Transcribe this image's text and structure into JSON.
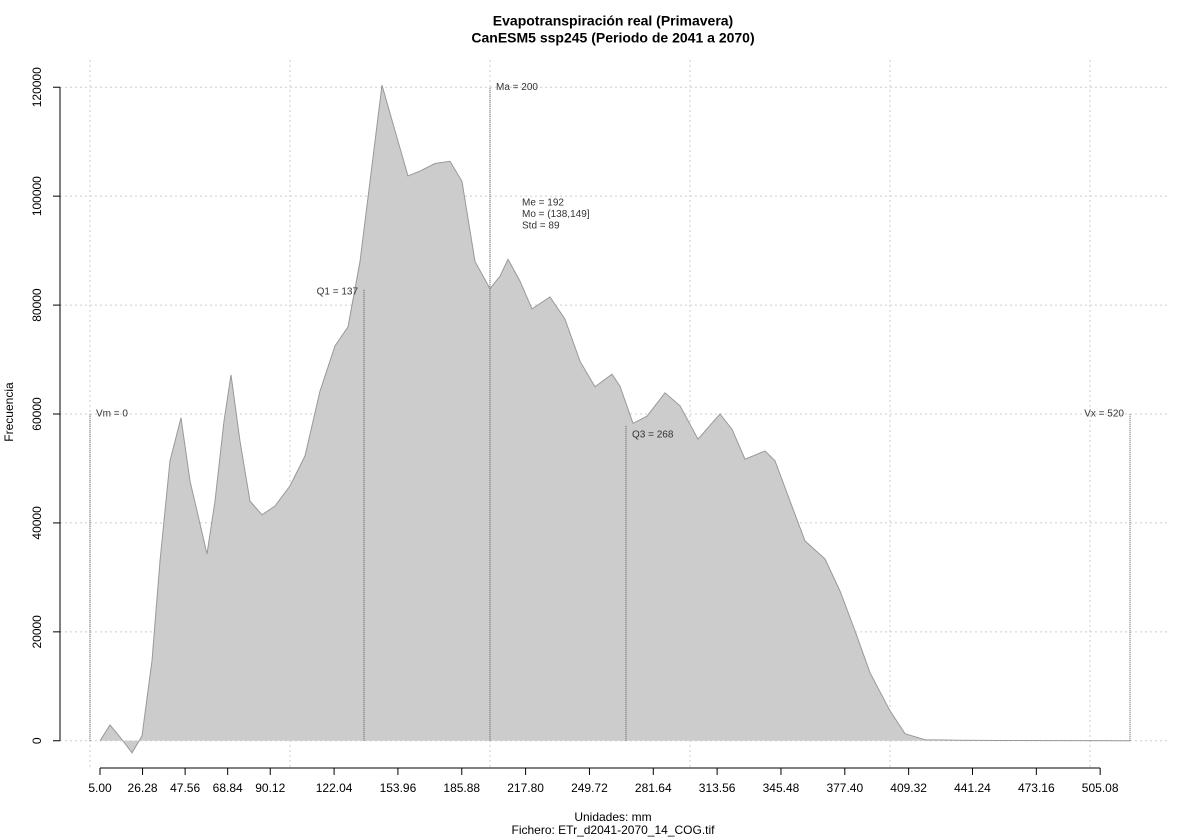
{
  "chart_data": {
    "type": "area",
    "title": "Evapotranspiración real (Primavera)",
    "subtitle": "CanESM5 ssp245 (Periodo de 2041 a 2070)",
    "x_label": "Unidades: mm",
    "caption": "Fichero: ETr_d2041-2070_14_COG.tif",
    "y_label": "Frecuencia",
    "color": "#cccccc",
    "line_color": "#999999",
    "x": [
      5,
      10,
      15,
      21,
      26,
      31,
      35,
      40,
      45.5,
      50,
      58.5,
      62.5,
      67,
      70.5,
      75,
      80,
      86,
      92.5,
      100,
      107.5,
      115,
      122.5,
      129,
      135,
      140,
      146,
      152.5,
      159,
      165,
      172.5,
      180,
      186,
      192.5,
      200,
      205,
      209,
      215,
      221,
      230,
      237.5,
      245,
      252.5,
      261,
      265,
      271.5,
      278.5,
      287.5,
      295,
      304,
      315,
      321,
      327.5,
      337.5,
      342.5,
      350,
      357.5,
      367.5,
      375,
      382.5,
      390,
      400,
      407.5,
      417.5,
      435,
      455,
      520
    ],
    "values": [
      0,
      2900,
      700,
      -2200,
      900,
      14700,
      33000,
      51400,
      59300,
      47700,
      34300,
      44000,
      58700,
      67200,
      55000,
      44000,
      41500,
      43100,
      46800,
      52300,
      64200,
      72500,
      76000,
      88000,
      102700,
      120400,
      112000,
      103700,
      104600,
      106000,
      106400,
      102700,
      88000,
      83000,
      85300,
      88400,
      84400,
      79300,
      81500,
      77400,
      69700,
      65000,
      67300,
      65100,
      58300,
      59600,
      63900,
      61500,
      55400,
      60000,
      57200,
      51700,
      53200,
      51400,
      44000,
      36700,
      33400,
      27500,
      20200,
      12500,
      5500,
      1300,
      200,
      100,
      50,
      0
    ],
    "xlim": [
      -15,
      540
    ],
    "ylim": [
      -5000,
      125000
    ],
    "xticks": [
      {
        "value": 5,
        "label": "5.00"
      },
      26.28,
      47.56,
      68.84,
      90.12,
      122.04,
      153.96,
      185.88,
      {
        "value": 217.8,
        "label": "217.80"
      },
      249.72,
      281.64,
      313.56,
      345.48,
      {
        "value": 377.4,
        "label": "377.40"
      },
      409.32,
      441.24,
      473.16,
      505.08
    ],
    "yticks": [
      0,
      20000,
      40000,
      60000,
      80000,
      100000,
      120000
    ],
    "xgrid": [
      0,
      100,
      200,
      300,
      400,
      500
    ],
    "grid": true,
    "markers": [
      {
        "label": "Vm = 0",
        "value": 0,
        "top": 60000
      },
      {
        "label": "Q1 = 137",
        "value": 137,
        "top": 83000
      },
      {
        "label": "Ma = 200",
        "value": 200,
        "top": 120000
      },
      {
        "label": "Q3 = 268",
        "value": 268,
        "top": 58000
      },
      {
        "label": "Vx = 520",
        "value": 520,
        "top": 60000
      }
    ],
    "stats": [
      "Me = 192",
      "Mo = (138,149]",
      "Std = 89"
    ]
  }
}
